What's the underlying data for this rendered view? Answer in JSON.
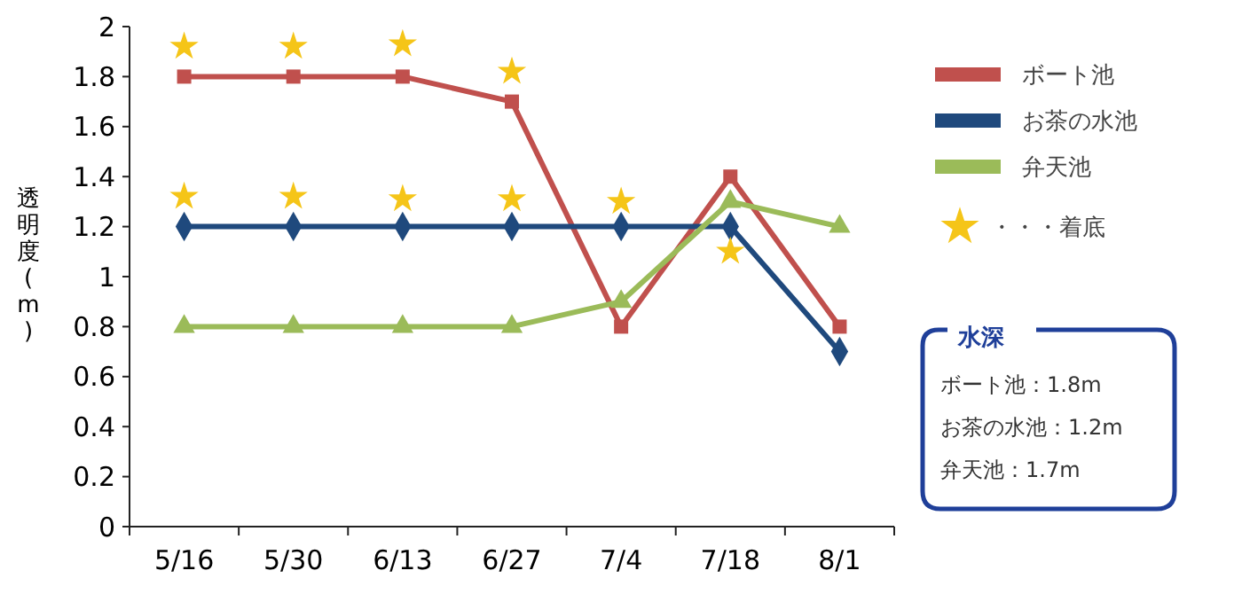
{
  "chart_data": {
    "type": "line",
    "ylabel": "透明度(m)",
    "categories": [
      "5/16",
      "5/30",
      "6/13",
      "6/27",
      "7/4",
      "7/18",
      "8/1"
    ],
    "ylim": [
      0,
      2
    ],
    "yticks": [
      0,
      0.2,
      0.4,
      0.6,
      0.8,
      1,
      1.2,
      1.4,
      1.6,
      1.8,
      2
    ],
    "grid": false,
    "legend": "right",
    "series": [
      {
        "name": "ボート池",
        "color": "#c0504d",
        "marker": "square",
        "values": [
          1.8,
          1.8,
          1.8,
          1.7,
          0.8,
          1.4,
          0.8
        ]
      },
      {
        "name": "お茶の水池",
        "color": "#1f497d",
        "marker": "diamond",
        "values": [
          1.2,
          1.2,
          1.2,
          1.2,
          1.2,
          1.2,
          0.7
        ]
      },
      {
        "name": "弁天池",
        "color": "#9bbb59",
        "marker": "triangle",
        "values": [
          0.8,
          0.8,
          0.8,
          0.8,
          0.9,
          1.3,
          1.2
        ]
      },
      {
        "name": "・・・着底",
        "type": "scatter",
        "color": "#f5c518",
        "marker": "star",
        "x": [
          "5/16",
          "5/30",
          "6/13",
          "6/27",
          "5/16",
          "5/30",
          "6/13",
          "6/27",
          "7/4",
          "7/18"
        ],
        "values": [
          1.92,
          1.92,
          1.93,
          1.82,
          1.32,
          1.32,
          1.31,
          1.31,
          1.3,
          1.1
        ]
      }
    ],
    "annotations": [
      "水深",
      "ボート池：1.8m",
      "お茶の水池：1.2m",
      "弁天池：1.7m"
    ]
  }
}
